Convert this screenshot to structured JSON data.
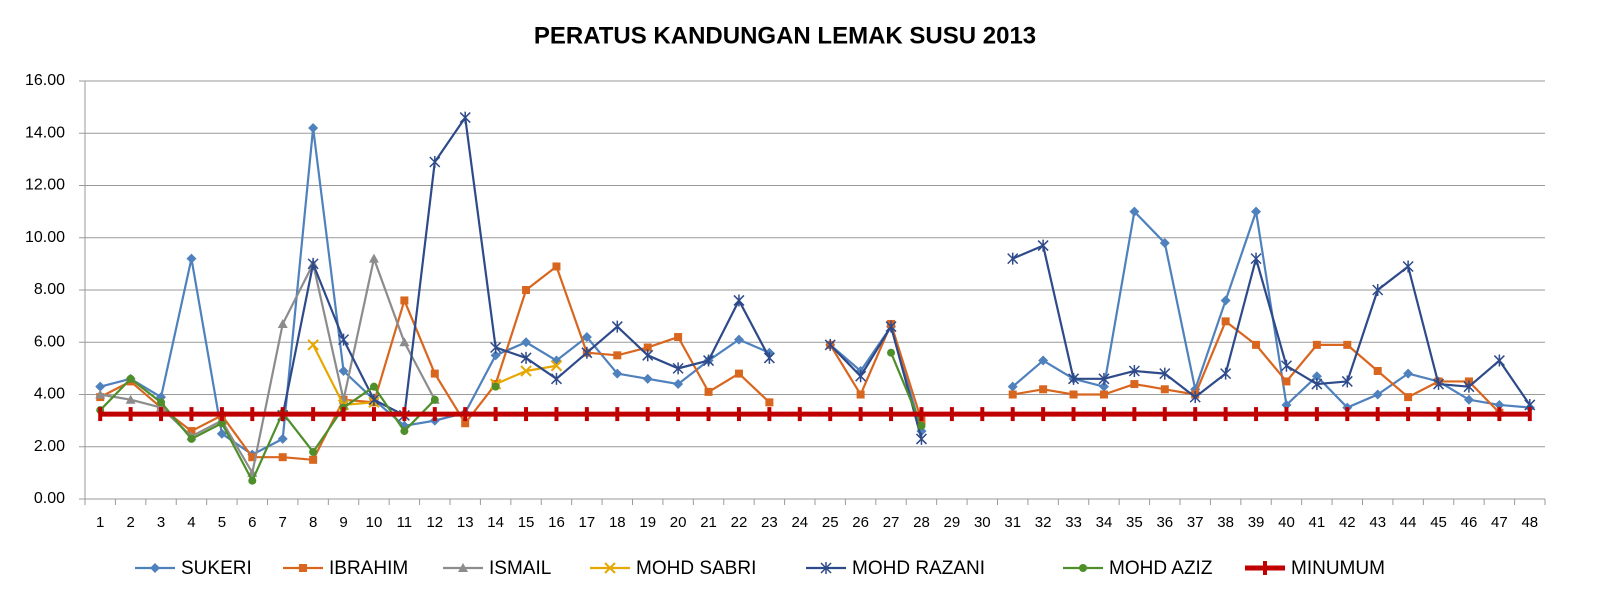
{
  "chart_data": {
    "type": "line",
    "title": "PERATUS KANDUNGAN LEMAK SUSU  2013",
    "categories": [
      "1",
      "2",
      "3",
      "4",
      "5",
      "6",
      "7",
      "8",
      "9",
      "10",
      "11",
      "12",
      "13",
      "14",
      "15",
      "16",
      "17",
      "18",
      "19",
      "20",
      "21",
      "22",
      "23",
      "24",
      "25",
      "26",
      "27",
      "28",
      "29",
      "30",
      "31",
      "32",
      "33",
      "34",
      "35",
      "36",
      "37",
      "38",
      "39",
      "40",
      "41",
      "42",
      "43",
      "44",
      "45",
      "46",
      "47",
      "48"
    ],
    "ylim": [
      0,
      16
    ],
    "yticks": [
      {
        "value": 0,
        "label": "0.00"
      },
      {
        "value": 2,
        "label": "2.00"
      },
      {
        "value": 4,
        "label": "4.00"
      },
      {
        "value": 6,
        "label": "6.00"
      },
      {
        "value": 8,
        "label": "8.00"
      },
      {
        "value": 10,
        "label": "10.00"
      },
      {
        "value": 12,
        "label": "12.00"
      },
      {
        "value": 14,
        "label": "14.00"
      },
      {
        "value": 16,
        "label": "16.00"
      }
    ],
    "grid": true,
    "legend": "bottom",
    "series": [
      {
        "name": "SUKERI",
        "color": "#4f81bd",
        "marker": "diamond",
        "values": [
          4.3,
          4.6,
          3.9,
          9.2,
          2.5,
          1.7,
          2.3,
          14.2,
          4.9,
          3.8,
          2.8,
          3.0,
          3.3,
          5.5,
          6.0,
          5.3,
          6.2,
          4.8,
          4.6,
          4.4,
          5.3,
          6.1,
          5.6,
          null,
          5.9,
          4.9,
          6.6,
          2.6,
          null,
          null,
          4.3,
          5.3,
          4.6,
          4.3,
          11.0,
          9.8,
          4.2,
          7.6,
          11.0,
          3.6,
          4.7,
          3.5,
          4.0,
          4.8,
          4.5,
          3.8,
          3.6,
          3.5
        ]
      },
      {
        "name": "IBRAHIM",
        "color": "#d9661f",
        "marker": "square",
        "values": [
          3.9,
          4.5,
          3.5,
          2.6,
          3.2,
          1.6,
          1.6,
          1.5,
          3.8,
          3.7,
          7.6,
          4.8,
          2.9,
          4.4,
          8.0,
          8.9,
          5.6,
          5.5,
          5.8,
          6.2,
          4.1,
          4.8,
          3.7,
          null,
          5.9,
          4.0,
          6.7,
          3.0,
          null,
          null,
          4.0,
          4.2,
          4.0,
          4.0,
          4.4,
          4.2,
          4.0,
          6.8,
          5.9,
          4.5,
          5.9,
          5.9,
          4.9,
          3.9,
          4.5,
          4.5,
          3.3,
          null
        ]
      },
      {
        "name": "ISMAIL",
        "color": "#8c8c8c",
        "marker": "triangle",
        "values": [
          4.0,
          3.8,
          3.5,
          2.4,
          3.0,
          1.0,
          6.7,
          9.0,
          3.8,
          9.2,
          6.0,
          3.8,
          null,
          null,
          null,
          null,
          null,
          null,
          null,
          null,
          null,
          null,
          null,
          null,
          null,
          null,
          null,
          null,
          null,
          null,
          null,
          null,
          null,
          null,
          null,
          null,
          null,
          null,
          null,
          null,
          null,
          null,
          null,
          null,
          null,
          null,
          null,
          null
        ]
      },
      {
        "name": "MOHD SABRI",
        "color": "#e6a800",
        "marker": "x",
        "values": [
          null,
          null,
          null,
          null,
          null,
          null,
          null,
          5.9,
          3.6,
          3.7,
          null,
          null,
          null,
          4.4,
          4.9,
          5.1,
          null,
          null,
          null,
          null,
          null,
          null,
          null,
          null,
          null,
          null,
          null,
          null,
          null,
          null,
          null,
          null,
          null,
          null,
          null,
          null,
          null,
          null,
          null,
          null,
          null,
          null,
          null,
          null,
          null,
          null,
          null,
          null
        ]
      },
      {
        "name": "MOHD RAZANI",
        "color": "#2e4a8a",
        "marker": "star",
        "values": [
          null,
          null,
          null,
          null,
          null,
          null,
          3.2,
          9.0,
          6.1,
          3.8,
          3.2,
          12.9,
          14.6,
          5.8,
          5.4,
          4.6,
          5.6,
          6.6,
          5.5,
          5.0,
          5.3,
          7.6,
          5.4,
          null,
          5.9,
          4.7,
          6.6,
          2.3,
          null,
          null,
          9.2,
          9.7,
          4.6,
          4.6,
          4.9,
          4.8,
          3.9,
          4.8,
          9.2,
          5.1,
          4.4,
          4.5,
          8.0,
          8.9,
          4.4,
          4.3,
          5.3,
          3.6
        ]
      },
      {
        "name": "MOHD AZIZ",
        "color": "#4e8f2a",
        "marker": "circle",
        "values": [
          3.4,
          4.6,
          3.7,
          2.3,
          2.9,
          0.7,
          3.3,
          1.8,
          3.5,
          4.3,
          2.6,
          3.8,
          null,
          4.3,
          null,
          null,
          null,
          null,
          null,
          null,
          null,
          null,
          null,
          null,
          null,
          null,
          5.6,
          2.8,
          null,
          null,
          null,
          null,
          null,
          null,
          null,
          null,
          null,
          null,
          null,
          null,
          null,
          null,
          null,
          null,
          null,
          null,
          null,
          null
        ]
      },
      {
        "name": "MINUMUM",
        "color": "#c00000",
        "marker": "plus",
        "values": [
          3.25,
          3.25,
          3.25,
          3.25,
          3.25,
          3.25,
          3.25,
          3.25,
          3.25,
          3.25,
          3.25,
          3.25,
          3.25,
          3.25,
          3.25,
          3.25,
          3.25,
          3.25,
          3.25,
          3.25,
          3.25,
          3.25,
          3.25,
          3.25,
          3.25,
          3.25,
          3.25,
          3.25,
          3.25,
          3.25,
          3.25,
          3.25,
          3.25,
          3.25,
          3.25,
          3.25,
          3.25,
          3.25,
          3.25,
          3.25,
          3.25,
          3.25,
          3.25,
          3.25,
          3.25,
          3.25,
          3.25,
          3.25
        ]
      }
    ]
  }
}
